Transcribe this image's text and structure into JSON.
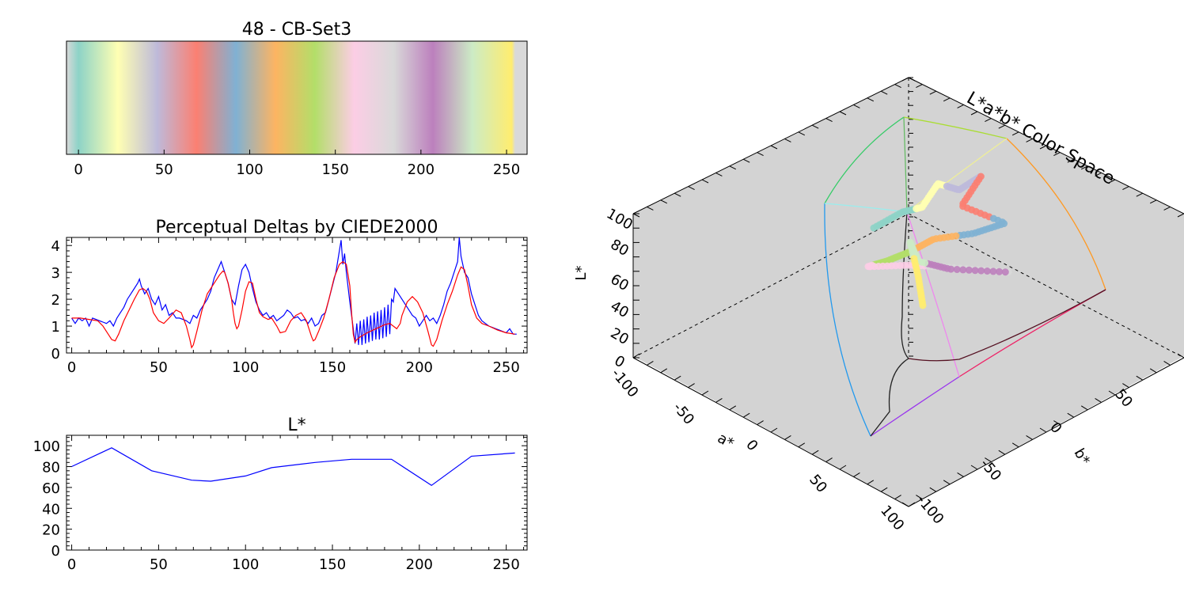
{
  "colorbar": {
    "title": "48 - CB-Set3",
    "xlim": [
      -7,
      262
    ],
    "x_ticks": [
      0,
      50,
      100,
      150,
      200,
      250
    ],
    "colors": [
      "#d9d9d9",
      "#8dd3c7",
      "#ffffb3",
      "#bebada",
      "#fb8072",
      "#80b1d3",
      "#fdb462",
      "#b3de69",
      "#fccde5",
      "#d9d9d9",
      "#bc80bd",
      "#ccebc5",
      "#ffed6f",
      "#d9d9d9"
    ],
    "color_stops": [
      -7,
      0,
      23,
      46,
      69,
      92,
      115,
      138,
      161,
      184,
      207,
      230,
      253,
      255
    ]
  },
  "chart_data": [
    {
      "type": "line",
      "title": "Perceptual Deltas by CIEDE2000",
      "xlim": [
        -3,
        262
      ],
      "ylim": [
        0,
        4.3
      ],
      "x_ticks": [
        0,
        50,
        100,
        150,
        200,
        250
      ],
      "y_ticks": [
        0,
        1,
        2,
        3,
        4
      ],
      "series": [
        {
          "color": "#0000ff",
          "x": [
            0,
            2,
            4,
            6,
            8,
            10,
            12,
            14,
            16,
            18,
            20,
            22,
            24,
            26,
            28,
            30,
            32,
            34,
            36,
            38,
            39,
            40,
            42,
            44,
            46,
            48,
            50,
            52,
            54,
            56,
            58,
            60,
            62,
            64,
            66,
            68,
            70,
            72,
            74,
            76,
            78,
            80,
            82,
            84,
            86,
            88,
            90,
            92,
            94,
            96,
            98,
            100,
            102,
            104,
            106,
            108,
            110,
            112,
            114,
            116,
            118,
            120,
            122,
            124,
            126,
            128,
            130,
            132,
            134,
            136,
            138,
            140,
            142,
            144,
            146,
            148,
            150,
            152,
            154,
            155,
            156,
            157,
            158,
            160,
            162,
            163,
            164,
            165,
            166,
            167,
            168,
            169,
            170,
            171,
            172,
            173,
            174,
            175,
            176,
            177,
            178,
            179,
            180,
            181,
            182,
            183,
            184,
            185,
            186,
            188,
            190,
            192,
            194,
            196,
            198,
            200,
            202,
            204,
            206,
            208,
            210,
            212,
            214,
            216,
            218,
            220,
            222,
            223,
            224,
            226,
            228,
            230,
            232,
            234,
            236,
            238,
            240,
            242,
            244,
            246,
            248,
            250,
            252,
            254,
            256
          ],
          "y": [
            1.3,
            1.1,
            1.3,
            1.2,
            1.3,
            1.0,
            1.3,
            1.25,
            1.2,
            1.15,
            1.1,
            1.2,
            1.0,
            1.3,
            1.5,
            1.7,
            2.0,
            2.2,
            2.4,
            2.6,
            2.75,
            2.5,
            2.2,
            2.4,
            2.0,
            1.8,
            2.1,
            1.6,
            1.8,
            1.4,
            1.5,
            1.3,
            1.3,
            1.25,
            1.2,
            1.1,
            1.4,
            1.3,
            1.6,
            1.8,
            2.0,
            2.3,
            2.8,
            3.1,
            3.4,
            3.0,
            2.6,
            2.0,
            1.8,
            2.5,
            3.1,
            3.3,
            3.0,
            2.4,
            1.9,
            1.6,
            1.4,
            1.5,
            1.3,
            1.4,
            1.2,
            1.3,
            1.4,
            1.6,
            1.5,
            1.3,
            1.35,
            1.2,
            1.25,
            1.1,
            1.3,
            1.0,
            1.1,
            1.4,
            1.5,
            2.0,
            2.5,
            3.0,
            3.8,
            4.2,
            3.3,
            3.7,
            3.0,
            1.9,
            0.9,
            0.35,
            1.1,
            0.3,
            1.2,
            0.3,
            1.25,
            0.35,
            1.35,
            0.4,
            1.4,
            0.45,
            1.5,
            0.5,
            1.55,
            0.5,
            1.6,
            0.55,
            1.7,
            0.6,
            1.8,
            0.7,
            2.0,
            1.9,
            2.4,
            2.2,
            2.0,
            1.8,
            1.6,
            1.4,
            1.3,
            1.0,
            1.2,
            1.4,
            1.2,
            1.3,
            1.1,
            1.4,
            1.8,
            2.3,
            2.6,
            3.0,
            3.4,
            4.3,
            3.6,
            3.0,
            2.8,
            2.2,
            1.8,
            1.4,
            1.2,
            1.1,
            1.0,
            0.95,
            0.9,
            0.85,
            0.8,
            0.75,
            0.9,
            0.7,
            0.7
          ]
        },
        {
          "color": "#ff0000",
          "x": [
            0,
            5,
            10,
            15,
            18,
            21,
            23,
            25,
            27,
            30,
            33,
            36,
            39,
            41,
            43,
            45,
            47,
            50,
            53,
            56,
            60,
            63,
            66,
            68,
            69,
            70,
            72,
            75,
            78,
            82,
            85,
            87,
            88,
            90,
            92,
            93,
            94,
            95,
            96,
            98,
            100,
            102,
            104,
            106,
            108,
            110,
            113,
            115,
            116,
            118,
            120,
            123,
            126,
            129,
            132,
            135,
            138,
            139,
            140,
            142,
            145,
            148,
            151,
            154,
            156,
            158,
            160,
            161,
            162,
            163,
            164,
            166,
            170,
            175,
            180,
            183,
            185,
            187,
            189,
            190,
            193,
            196,
            199,
            202,
            205,
            207,
            208,
            210,
            213,
            216,
            219,
            222,
            224,
            226,
            228,
            230,
            233,
            236,
            240,
            245,
            250,
            255
          ],
          "y": [
            1.3,
            1.3,
            1.25,
            1.2,
            1.0,
            0.7,
            0.5,
            0.45,
            0.7,
            1.2,
            1.6,
            2.0,
            2.35,
            2.4,
            2.3,
            2.0,
            1.5,
            1.2,
            1.1,
            1.3,
            1.6,
            1.5,
            1.0,
            0.5,
            0.2,
            0.3,
            0.8,
            1.6,
            2.2,
            2.6,
            2.9,
            3.05,
            3.0,
            2.6,
            2.0,
            1.5,
            1.1,
            0.9,
            1.0,
            1.6,
            2.3,
            2.65,
            2.6,
            2.0,
            1.5,
            1.35,
            1.25,
            1.3,
            1.2,
            1.0,
            0.75,
            0.8,
            1.2,
            1.4,
            1.5,
            1.2,
            0.6,
            0.45,
            0.5,
            0.8,
            1.3,
            2.0,
            2.8,
            3.3,
            3.4,
            3.3,
            2.5,
            1.5,
            0.7,
            0.4,
            0.5,
            0.6,
            0.75,
            0.9,
            1.05,
            1.1,
            1.0,
            0.9,
            1.1,
            1.4,
            1.9,
            2.1,
            1.9,
            1.5,
            0.8,
            0.3,
            0.25,
            0.5,
            1.2,
            1.8,
            2.3,
            2.9,
            3.2,
            3.1,
            2.5,
            1.8,
            1.3,
            1.1,
            1.0,
            0.85,
            0.75,
            0.7
          ]
        }
      ]
    },
    {
      "type": "line",
      "title": "L*",
      "xlim": [
        -3,
        262
      ],
      "ylim": [
        0,
        110
      ],
      "x_ticks": [
        0,
        50,
        100,
        150,
        200,
        250
      ],
      "y_ticks": [
        0,
        20,
        40,
        60,
        80,
        100
      ],
      "series": [
        {
          "color": "#0000ff",
          "x": [
            0,
            23,
            46,
            69,
            80,
            100,
            115,
            140,
            161,
            184,
            207,
            230,
            255
          ],
          "y": [
            80,
            98,
            76,
            67,
            66,
            71,
            79,
            84,
            87,
            87,
            62,
            90,
            93
          ]
        }
      ]
    }
  ],
  "color_space": {
    "title": "L*a*b* Color Space",
    "l_label": "L*",
    "a_label": "a*",
    "b_label": "b*",
    "l_ticks": [
      "0",
      "20",
      "40",
      "60",
      "80",
      "100"
    ],
    "a_ticks": [
      "-100",
      "-50",
      "0",
      "50",
      "100"
    ],
    "b_ticks": [
      "-100",
      "-50",
      "0",
      "50"
    ]
  }
}
